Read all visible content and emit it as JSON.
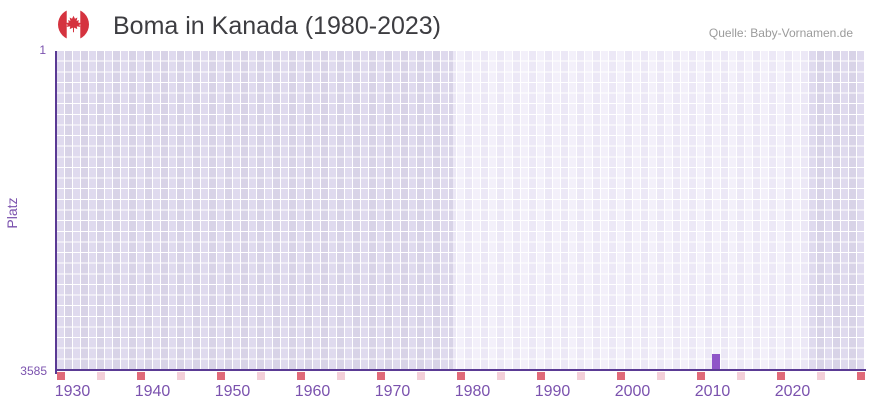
{
  "header": {
    "title": "Boma in Kanada (1980-2023)",
    "source": "Quelle: Baby-Vornamen.de",
    "flag_icon": "canada-flag"
  },
  "chart_data": {
    "type": "bar",
    "title": "Boma in Kanada (1980-2023)",
    "xlabel": "",
    "ylabel": "Platz",
    "x_axis": {
      "min": 1928,
      "max": 2029,
      "tick_years": [
        1930,
        1940,
        1950,
        1960,
        1970,
        1980,
        1990,
        2000,
        2010,
        2020
      ],
      "minor_tick_start": 1928,
      "minor_tick_step": 5
    },
    "y_axis": {
      "label_top": "1",
      "label_bottom": "3585",
      "min": 1,
      "max": 3585,
      "inverted": true
    },
    "series": [
      {
        "name": "Boma",
        "points": [
          {
            "year": 2010,
            "rank": 3400
          }
        ]
      }
    ],
    "shaded_regions": [
      {
        "from_year": 1928,
        "to_year": 1977.5,
        "style": "darker"
      },
      {
        "from_year": 2022,
        "to_year": 2029,
        "style": "darker"
      }
    ],
    "grid": true,
    "legend": false,
    "colors": {
      "bar": "#8f55c8",
      "axis": "#5a3a94",
      "tick_label": "#7b52ae",
      "grid_cell_light": "#f1edf9",
      "grid_cell_dark": "#dcd7ea",
      "minor_tick_dark": "#e06a79",
      "minor_tick_light": "#f3cfd8",
      "flag_red": "#d5333f",
      "title_text": "#3d3d41",
      "source_text": "#9b9b9b"
    }
  }
}
